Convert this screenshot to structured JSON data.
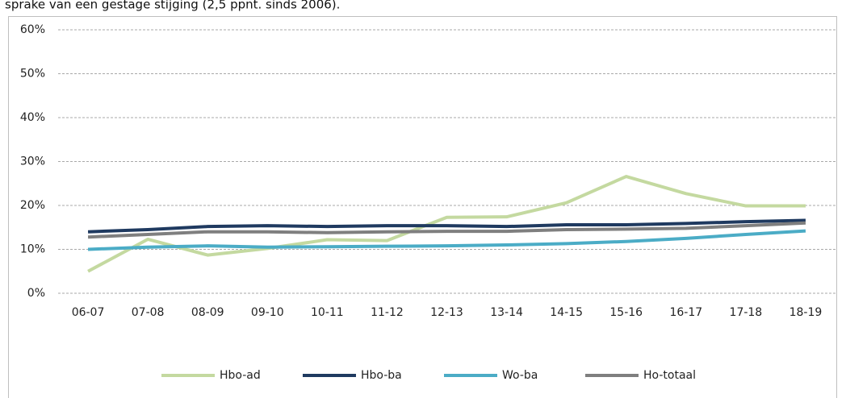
{
  "chart_data": {
    "type": "line",
    "subtitle": "sprake van een gestage stijging (2,5 ppnt. sinds 2006).",
    "categories": [
      "06-07",
      "07-08",
      "08-09",
      "09-10",
      "10-11",
      "11-12",
      "12-13",
      "13-14",
      "14-15",
      "15-16",
      "16-17",
      "17-18",
      "18-19"
    ],
    "series": [
      {
        "name": "Hbo-ad",
        "color": "#c4d9a0",
        "values": [
          5,
          12.3,
          8.7,
          10.2,
          12.2,
          12,
          17.3,
          17.4,
          20.6,
          26.6,
          22.7,
          19.9,
          19.9
        ]
      },
      {
        "name": "Hbo-ba",
        "color": "#1f3a60",
        "values": [
          14,
          14.5,
          15.2,
          15.4,
          15.2,
          15.4,
          15.4,
          15.2,
          15.6,
          15.6,
          15.9,
          16.3,
          16.6
        ]
      },
      {
        "name": "Wo-ba",
        "color": "#4bacc6",
        "values": [
          10,
          10.5,
          10.8,
          10.5,
          10.6,
          10.7,
          10.8,
          11,
          11.3,
          11.8,
          12.5,
          13.4,
          14.2
        ]
      },
      {
        "name": "Ho-totaal",
        "color": "#7f7f7f",
        "values": [
          12.8,
          13.4,
          14,
          14,
          13.8,
          14,
          14.1,
          14.1,
          14.5,
          14.6,
          14.8,
          15.4,
          16
        ]
      }
    ],
    "ylim": [
      0,
      60
    ],
    "yticks": [
      {
        "value": 0,
        "label": "0%"
      },
      {
        "value": 10,
        "label": "10%"
      },
      {
        "value": 20,
        "label": "20%"
      },
      {
        "value": 30,
        "label": "30%"
      },
      {
        "value": 40,
        "label": "40%"
      },
      {
        "value": 50,
        "label": "50%"
      },
      {
        "value": 60,
        "label": "60%"
      }
    ],
    "grid": true,
    "legend": "bottom"
  }
}
